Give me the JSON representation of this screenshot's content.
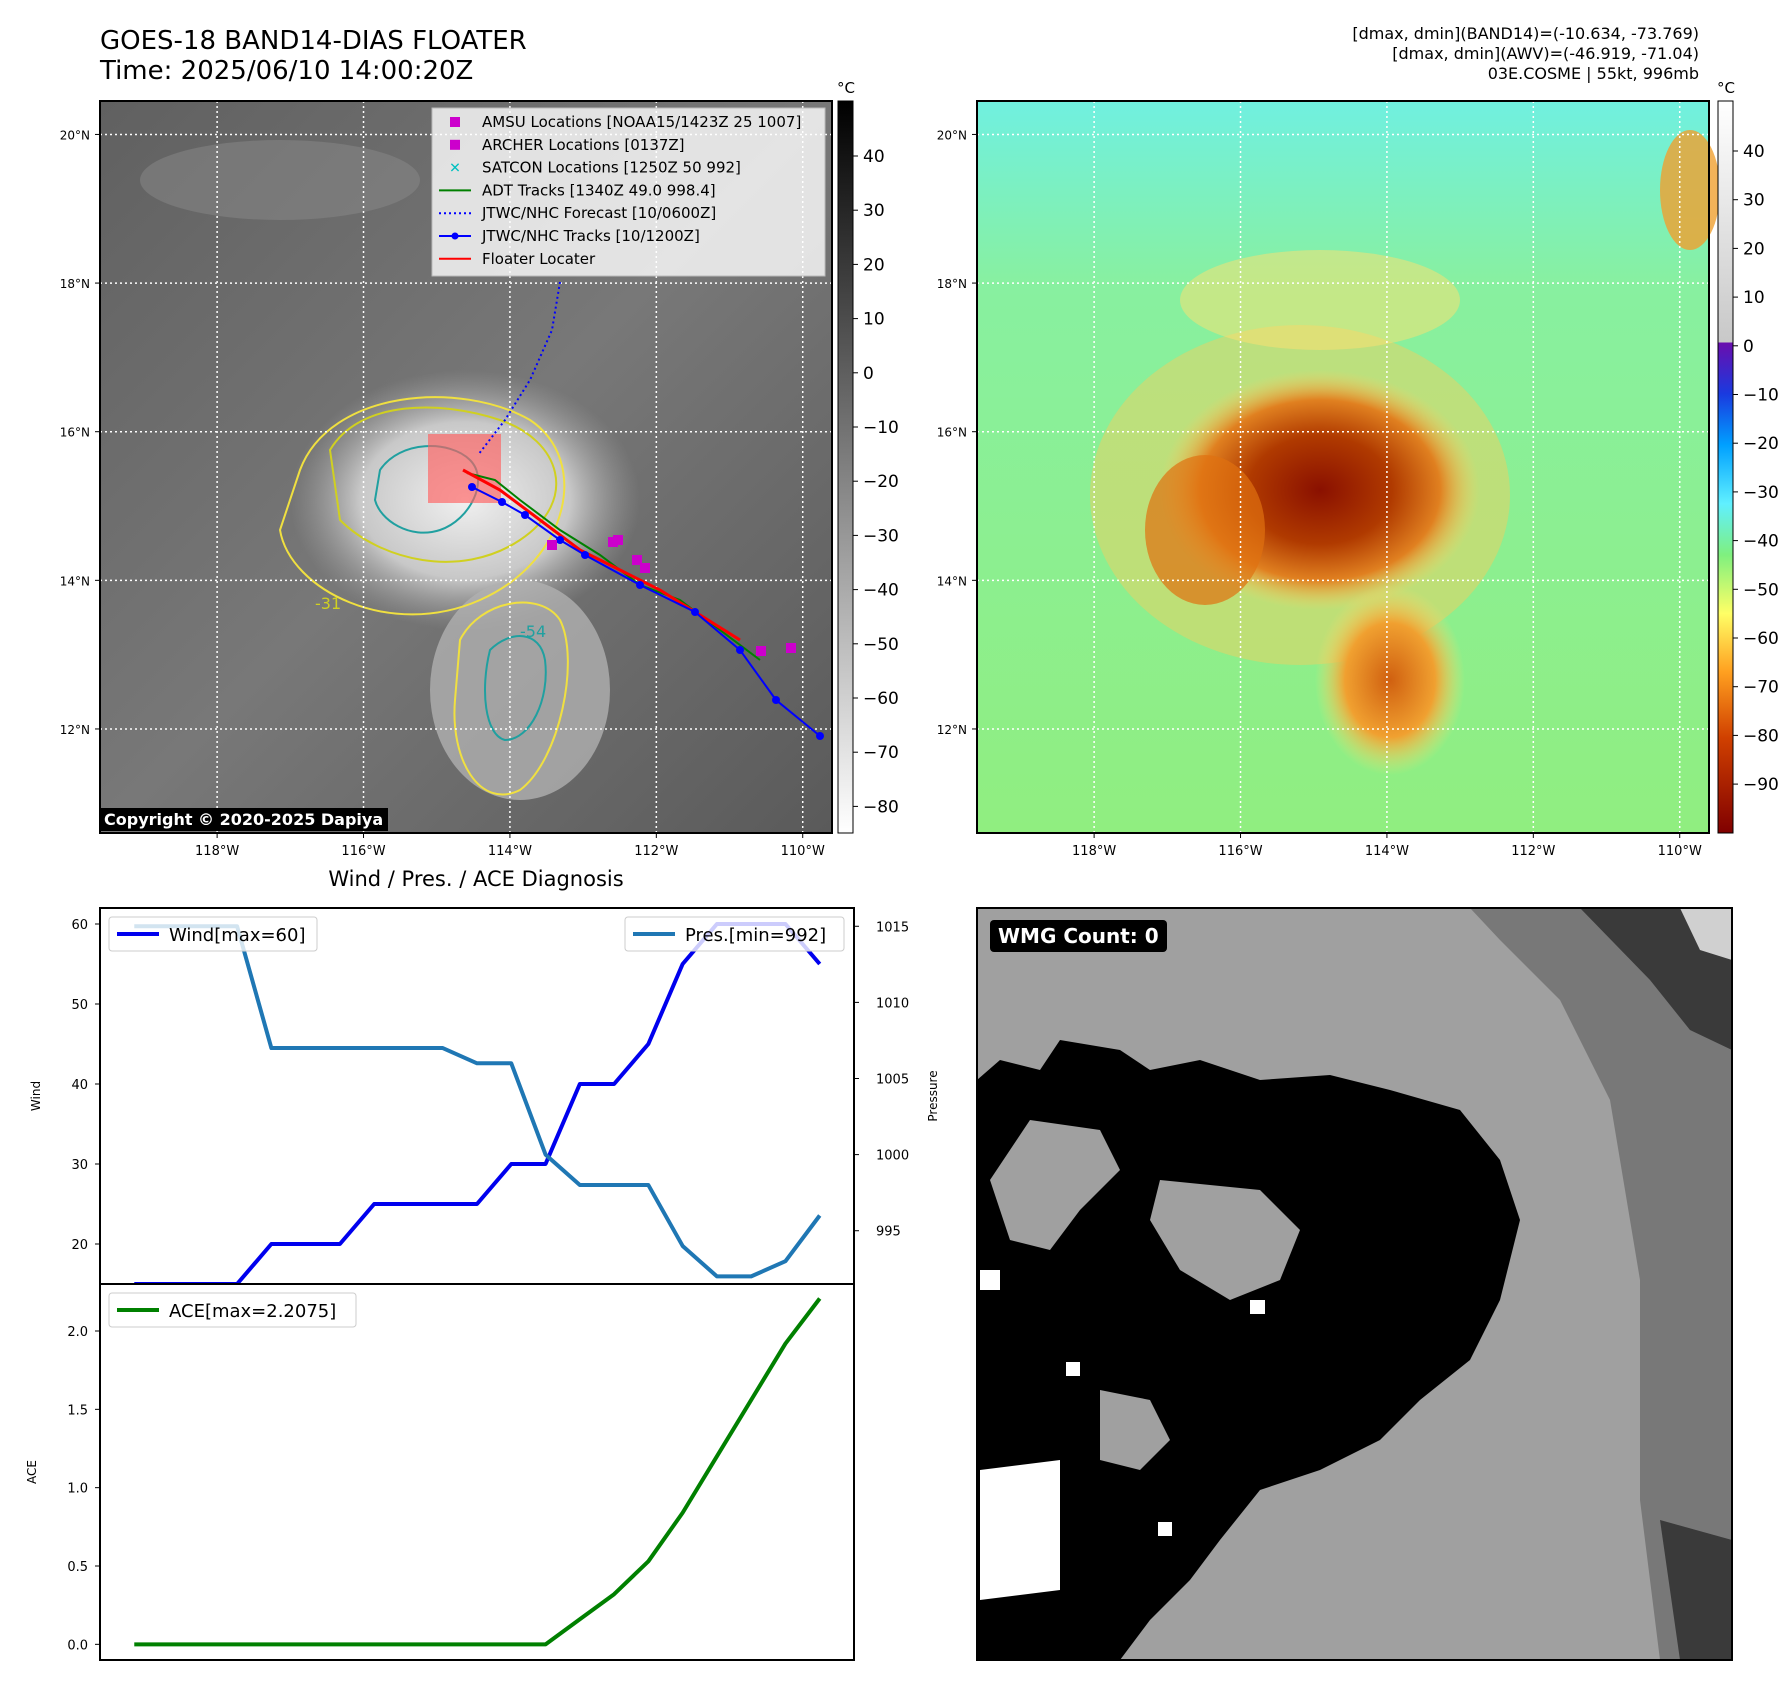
{
  "header": {
    "title_line1": "GOES-18 BAND14-DIAS FLOATER",
    "title_line2": "Time: 2025/06/10 14:00:20Z",
    "right_line1": "[dmax, dmin](BAND14)=(-10.634, -73.769)",
    "right_line2": "[dmax, dmin](AWV)=(-46.919, -71.04)",
    "right_line3": "03E.COSME | 55kt, 996mb"
  },
  "colors": {
    "wind": "#0000ee",
    "pressure": "#1f77b4",
    "ace": "#008000",
    "adt": "#008000",
    "jtwc_forecast": "#0000ff",
    "jtwc_tracks": "#0000ff",
    "floater": "#ff0000",
    "amsu": "#cc00cc",
    "archer": "#cc00cc",
    "satcon": "#00c0c0"
  },
  "map": {
    "lat_labels": [
      "20°N",
      "18°N",
      "16°N",
      "14°N",
      "12°N"
    ],
    "lon_labels": [
      "118°W",
      "116°W",
      "114°W",
      "112°W",
      "110°W"
    ],
    "lat_values": [
      20,
      18,
      16,
      14,
      12
    ],
    "lon_values": [
      -118,
      -116,
      -114,
      -112,
      -110
    ],
    "extent": {
      "lon_min": -119.6,
      "lon_max": -109.6,
      "lat_min": 10.6,
      "lat_max": 20.45
    },
    "colorbar_unit": "°C",
    "colorbar_left_ticks": [
      "40",
      "30",
      "20",
      "10",
      "0",
      "−10",
      "−20",
      "−30",
      "−40",
      "−50",
      "−60",
      "−70",
      "−80"
    ],
    "colorbar_right_ticks": [
      "40",
      "30",
      "20",
      "10",
      "0",
      "−10",
      "−20",
      "−30",
      "−40",
      "−50",
      "−60",
      "−70",
      "−80",
      "−90"
    ],
    "copyright": "Copyright © 2020-2025 Dapiya",
    "contour_labels": [
      "-54",
      "-31"
    ],
    "legend": [
      {
        "label": "AMSU Locations [NOAA15/1423Z 25 1007]",
        "marker": "square",
        "color_key": "amsu"
      },
      {
        "label": "ARCHER Locations [0137Z]",
        "marker": "square",
        "color_key": "archer"
      },
      {
        "label": "SATCON Locations [1250Z 50 992]",
        "marker": "x",
        "color_key": "satcon"
      },
      {
        "label": "ADT Tracks [1340Z 49.0 998.4]",
        "marker": "line",
        "color_key": "adt"
      },
      {
        "label": "JTWC/NHC Forecast [10/0600Z]",
        "marker": "dotted",
        "color_key": "jtwc_forecast"
      },
      {
        "label": "JTWC/NHC Tracks [10/1200Z]",
        "marker": "line-dot",
        "color_key": "jtwc_tracks"
      },
      {
        "label": "Floater Locater",
        "marker": "line",
        "color_key": "floater"
      }
    ]
  },
  "chart_data": [
    {
      "type": "line",
      "title": "Wind / Pres. / ACE Diagnosis",
      "x": [
        0,
        1,
        2,
        3,
        4,
        5,
        6,
        7,
        8,
        9,
        10,
        11,
        12,
        13,
        14,
        15,
        16,
        17,
        18,
        19,
        20
      ],
      "ylabel": "Wind",
      "y2label": "Pressure",
      "ylim": [
        15,
        62
      ],
      "y2lim": [
        991.5,
        1016.2
      ],
      "yticks": [
        20,
        30,
        40,
        50,
        60
      ],
      "y2ticks": [
        995,
        1000,
        1005,
        1010,
        1015
      ],
      "series": [
        {
          "name": "Wind[max=60]",
          "axis": "left",
          "color_key": "wind",
          "values": [
            15,
            15,
            15,
            15,
            20,
            20,
            20,
            25,
            25,
            25,
            25,
            30,
            30,
            40,
            40,
            45,
            55,
            60,
            60,
            60,
            55
          ]
        },
        {
          "name": "Pres.[min=992]",
          "axis": "right",
          "color_key": "pressure",
          "values": [
            1015,
            1015,
            1015,
            1015,
            1007,
            1007,
            1007,
            1007,
            1007,
            1007,
            1006,
            1006,
            1000,
            998,
            998,
            998,
            994,
            992,
            992,
            993,
            996
          ]
        }
      ]
    },
    {
      "type": "line",
      "x": [
        0,
        1,
        2,
        3,
        4,
        5,
        6,
        7,
        8,
        9,
        10,
        11,
        12,
        13,
        14,
        15,
        16,
        17,
        18,
        19,
        20
      ],
      "ylabel": "ACE",
      "ylim": [
        -0.1,
        2.3
      ],
      "yticks": [
        0.0,
        0.5,
        1.0,
        1.5,
        2.0
      ],
      "ytick_labels": [
        "0.0",
        "0.5",
        "1.0",
        "1.5",
        "2.0"
      ],
      "series": [
        {
          "name": "ACE[max=2.2075]",
          "axis": "left",
          "color_key": "ace",
          "values": [
            0,
            0,
            0,
            0,
            0,
            0,
            0,
            0,
            0,
            0,
            0,
            0,
            0.0,
            0.16,
            0.32,
            0.53,
            0.84,
            1.2,
            1.56,
            1.92,
            2.2075
          ]
        }
      ]
    }
  ],
  "wmg": {
    "label": "WMG Count: 0"
  }
}
